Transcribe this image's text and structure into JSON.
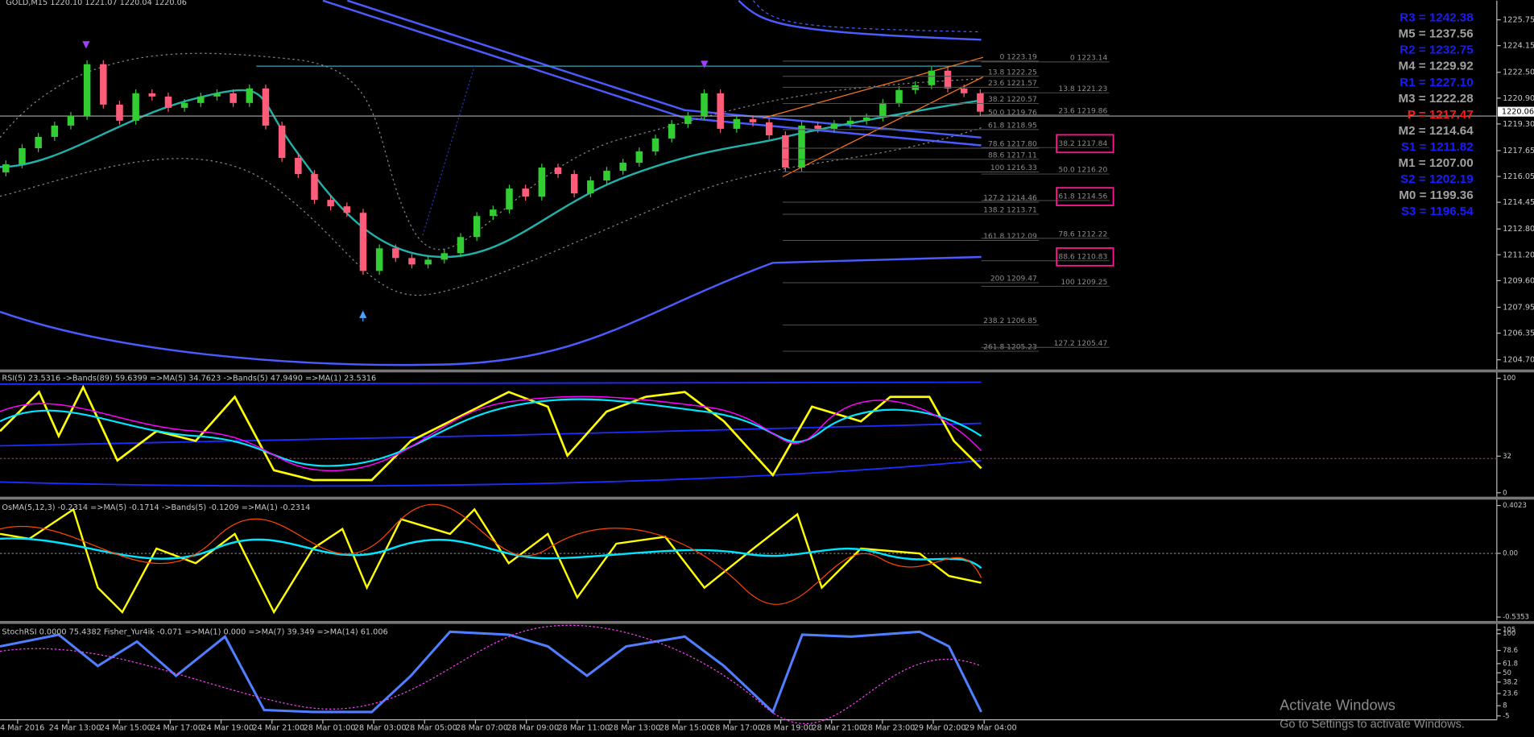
{
  "header": {
    "symbol": "GOLD,M15  1220.10 1221.07 1220.04 1220.06"
  },
  "candles": {
    "bull_color": "#32cd32",
    "bear_color": "#ff5c7a",
    "open": [
      1216.3,
      1216.8,
      1217.8,
      1218.5,
      1219.2,
      1219.8,
      1223.0,
      1220.5,
      1219.5,
      1221.2,
      1221.0,
      1220.3,
      1220.6,
      1221.0,
      1221.2,
      1220.6,
      1221.5,
      1219.2,
      1217.2,
      1216.2,
      1214.6,
      1214.2,
      1213.8,
      1210.2,
      1211.6,
      1211.0,
      1210.6,
      1210.9,
      1211.3,
      1212.3,
      1213.6,
      1214.0,
      1215.3,
      1214.8,
      1216.6,
      1216.2,
      1215.0,
      1215.8,
      1216.4,
      1216.9,
      1217.6,
      1218.4,
      1219.3,
      1219.8,
      1221.2,
      1219.0,
      1219.6,
      1219.4,
      1218.6,
      1216.6,
      1219.2,
      1219.0,
      1219.3,
      1219.5,
      1219.7,
      1220.6,
      1221.4,
      1221.7,
      1222.6,
      1221.5,
      1221.2
    ],
    "close": [
      1216.8,
      1217.8,
      1218.5,
      1219.2,
      1219.8,
      1223.0,
      1220.5,
      1219.5,
      1221.2,
      1221.0,
      1220.3,
      1220.6,
      1221.0,
      1221.2,
      1220.6,
      1221.5,
      1219.2,
      1217.2,
      1216.2,
      1214.6,
      1214.2,
      1213.8,
      1210.2,
      1211.6,
      1211.0,
      1210.6,
      1210.9,
      1211.3,
      1212.3,
      1213.6,
      1214.0,
      1215.3,
      1214.8,
      1216.6,
      1216.2,
      1215.0,
      1215.8,
      1216.4,
      1216.9,
      1217.6,
      1218.4,
      1219.3,
      1219.8,
      1221.2,
      1219.0,
      1219.6,
      1219.4,
      1218.6,
      1216.6,
      1219.2,
      1219.0,
      1219.3,
      1219.5,
      1219.7,
      1220.6,
      1221.4,
      1221.7,
      1222.6,
      1221.5,
      1221.2,
      1220.06
    ]
  },
  "price_axis": {
    "ylim": [
      1204.1,
      1226.94
    ],
    "ticks": [
      1225.75,
      1224.15,
      {
        "value": 1222.5,
        "label": "1222.50"
      },
      {
        "value": 1220.9,
        "label": "1220.90"
      },
      {
        "value": 1219.3,
        "label": "1219.30"
      },
      1217.65,
      1216.05,
      1214.45,
      {
        "value": 1212.8,
        "label": "1212.80"
      },
      {
        "value": 1211.2,
        "label": "1211.20"
      },
      {
        "value": 1209.6,
        "label": "1209.60"
      },
      1207.95,
      1206.35,
      {
        "value": 1204.7,
        "label": "1204.70"
      }
    ],
    "current": 1220.06
  },
  "fib_sets": [
    {
      "boxed": false,
      "levels": [
        {
          "label": "0 1223.19",
          "price": 1223.19
        },
        {
          "label": "13.8 1222.25",
          "price": 1222.25
        },
        {
          "label": "23.6 1221.57",
          "price": 1221.57
        },
        {
          "label": "38.2 1220.57",
          "price": 1220.57
        },
        {
          "label": "50.0 1219.76",
          "price": 1219.76
        },
        {
          "label": "61.8 1218.95",
          "price": 1218.95
        },
        {
          "label": "78.6 1217.80",
          "price": 1217.8
        },
        {
          "label": "88.6 1217.11",
          "price": 1217.11
        },
        {
          "label": "100 1216.33",
          "price": 1216.33
        },
        {
          "label": "127.2 1214.46",
          "price": 1214.46
        },
        {
          "label": "138.2 1213.71",
          "price": 1213.71
        },
        {
          "label": "161.8 1212.09",
          "price": 1212.09
        },
        {
          "label": "200 1209.47",
          "price": 1209.47
        },
        {
          "label": "238.2 1206.85",
          "price": 1206.85
        },
        {
          "label": "261.8 1205.23",
          "price": 1205.23
        }
      ]
    },
    {
      "boxed": true,
      "levels": [
        {
          "label": "0 1223.14",
          "price": 1223.14
        },
        {
          "label": "13.8 1221.23",
          "price": 1221.23
        },
        {
          "label": "23.6 1219.86",
          "price": 1219.86
        },
        {
          "label": "38.2 1217.84",
          "price": 1217.84,
          "box": true
        },
        {
          "label": "50.0 1216.20",
          "price": 1216.2
        },
        {
          "label": "61.8 1214.56",
          "price": 1214.56,
          "box": true
        },
        {
          "label": "78.6 1212.22",
          "price": 1212.22
        },
        {
          "label": "88.6 1210.83",
          "price": 1210.83,
          "box": true
        },
        {
          "label": "100 1209.25",
          "price": 1209.25
        },
        {
          "label": "127.2 1205.47",
          "price": 1205.47
        }
      ]
    }
  ],
  "pivots": [
    {
      "text": "R3 = 1242.38",
      "color": "#1a1aff"
    },
    {
      "text": "M5 = 1237.56",
      "color": "#a0a0a0"
    },
    {
      "text": "R2 = 1232.75",
      "color": "#1a1aff"
    },
    {
      "text": "M4 = 1229.92",
      "color": "#a0a0a0"
    },
    {
      "text": "R1 = 1227.10",
      "color": "#1a1aff"
    },
    {
      "text": "M3 = 1222.28",
      "color": "#a0a0a0"
    },
    {
      "text": "P   = 1217.47",
      "color": "#ff1a1a"
    },
    {
      "text": "M2 = 1214.64",
      "color": "#a0a0a0"
    },
    {
      "text": "S1 = 1211.82",
      "color": "#1a1aff"
    },
    {
      "text": "M1 = 1207.00",
      "color": "#a0a0a0"
    },
    {
      "text": "S2 = 1202.19",
      "color": "#1a1aff"
    },
    {
      "text": "M0 = 1199.36",
      "color": "#a0a0a0"
    },
    {
      "text": "S3 = 1196.54",
      "color": "#1a1aff"
    }
  ],
  "indicators": [
    {
      "header": "RSI(5) 23.5316  ->Bands(89) 59.6399  =>MA(5) 34.7623  ->Bands(5) 47.9490  =>MA(1) 23.5316",
      "ylim": [
        0,
        100
      ],
      "ticks": [
        100,
        32,
        0
      ],
      "top": 380,
      "bottom": 507
    },
    {
      "header": "OsMA(5,12,3) -0.2314  =>MA(5) -0.1714  ->Bands(5) -0.1209  =>MA(1) -0.2314",
      "ylim": [
        -0.5353,
        0.4023
      ],
      "ticks": [
        0.4023,
        {
          "value": 0,
          "label": "0.00"
        },
        -0.5353
      ],
      "top": 510,
      "bottom": 634
    },
    {
      "header": "StochRSI 0.0000 75.4382  Fisher_Yur4ik -0.071  =>MA(1) 0.000  =>MA(7) 39.349  =>MA(14) 61.006",
      "ylim": [
        -5,
        105
      ],
      "ticks": [
        105,
        100,
        78.6,
        61.8,
        50,
        38.2,
        23.6,
        8,
        -5
      ],
      "top": 637,
      "bottom": 735
    }
  ],
  "time_axis": [
    "4 Mar 2016",
    "24 Mar 13:00",
    "24 Mar 15:00",
    "24 Mar 17:00",
    "24 Mar 19:00",
    "24 Mar 21:00",
    "28 Mar 01:00",
    "28 Mar 03:00",
    "28 Mar 05:00",
    "28 Mar 07:00",
    "28 Mar 09:00",
    "28 Mar 11:00",
    "28 Mar 13:00",
    "28 Mar 15:00",
    "28 Mar 17:00",
    "28 Mar 19:00",
    "28 Mar 21:00",
    "28 Mar 23:00",
    "29 Mar 02:00",
    "29 Mar 04:00"
  ],
  "watermark": {
    "title": "Activate Windows",
    "subtitle": "Go to Settings to activate Windows."
  }
}
